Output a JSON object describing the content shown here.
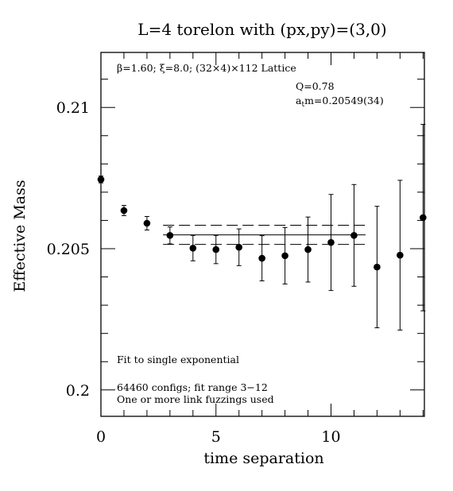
{
  "chart_data": {
    "type": "scatter",
    "title": "L=4 torelon with (px,py)=(3,0)",
    "xlabel": "time separation",
    "ylabel": "Effective Mass",
    "xlim": [
      0,
      14.3
    ],
    "ylim": [
      0.199,
      0.212
    ],
    "x_major_ticks": [
      0,
      5,
      10
    ],
    "x_minor_ticks": [
      1,
      2,
      3,
      4,
      6,
      7,
      8,
      9,
      11,
      12,
      13,
      14
    ],
    "y_major_ticks": [
      0.2,
      0.205,
      0.21
    ],
    "y_major_labels": [
      "0.2",
      "0.205",
      "0.21"
    ],
    "y_minor_ticks": [
      0.201,
      0.202,
      0.203,
      0.204,
      0.206,
      0.207,
      0.208,
      0.209,
      0.211
    ],
    "x_tick_labels": [
      "0",
      "5",
      "10"
    ],
    "grid": false,
    "series": [
      {
        "x": [
          0,
          1,
          2,
          3,
          4,
          5,
          6,
          7,
          8,
          9,
          10,
          11,
          12,
          13,
          14
        ],
        "y": [
          0.20745,
          0.20635,
          0.2059,
          0.20547,
          0.20502,
          0.20497,
          0.20505,
          0.20466,
          0.20475,
          0.20497,
          0.20522,
          0.20547,
          0.20435,
          0.20477,
          0.2061
        ],
        "yerr": [
          0.00012,
          0.00018,
          0.00024,
          0.0003,
          0.00045,
          0.0005,
          0.00065,
          0.0008,
          0.001,
          0.00115,
          0.0017,
          0.0018,
          0.00215,
          0.00265,
          0.0033
        ]
      }
    ],
    "fit": {
      "x_range": [
        2.7,
        11.5
      ],
      "central": 0.20549,
      "lower": 0.20515,
      "upper": 0.20583
    },
    "annotations": {
      "lattice": "β=1.60; ξ=8.0; (32×4)×112 Lattice",
      "q_value": "Q=0.78",
      "mass_prefix": "a",
      "mass_sub": "t",
      "mass_value": "m=0.20549(34)",
      "fit_note": "Fit to single exponential",
      "configs": "64460 configs; fit range 3−12",
      "fuzzing": "One or more link fuzzings used"
    }
  }
}
